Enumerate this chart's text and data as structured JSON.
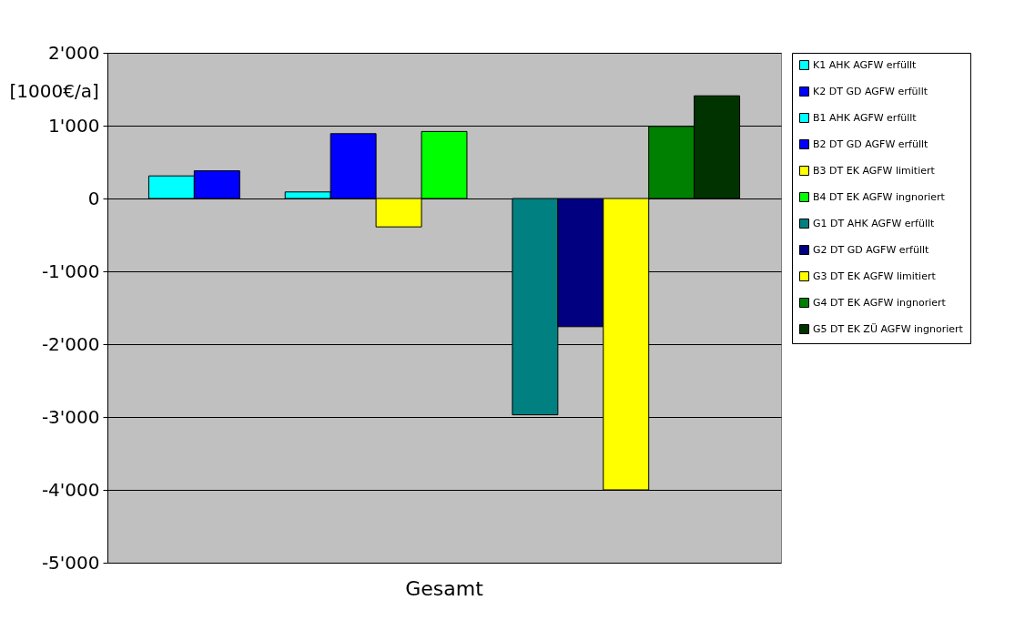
{
  "chart_data": {
    "type": "bar",
    "categories": [
      "Gesamt"
    ],
    "ylabel": "[1000€/a]",
    "ylim": [
      -5000,
      2000
    ],
    "yticks": [
      {
        "value": 2000,
        "label": "2'000"
      },
      {
        "value": 1000,
        "label": "1'000"
      },
      0,
      {
        "value": -1000,
        "label": "-1'000"
      },
      {
        "value": -2000,
        "label": "-2'000"
      },
      {
        "value": -3000,
        "label": "-3'000"
      },
      {
        "value": -4000,
        "label": "-4'000"
      },
      {
        "value": -5000,
        "label": "-5'000"
      }
    ],
    "grid": "y",
    "legend": "right",
    "series": [
      {
        "name": "K1 AHK AGFW erfüllt",
        "color": "#00ffff",
        "values": [
          310
        ]
      },
      {
        "name": "K2 DT GD AGFW erfüllt",
        "color": "#0000ff",
        "values": [
          380
        ]
      },
      {
        "values": [
          null
        ]
      },
      {
        "name": "B1 AHK AGFW erfüllt",
        "color": "#00ffff",
        "values": [
          90
        ]
      },
      {
        "name": "B2 DT GD AGFW erfüllt",
        "color": "#0000ff",
        "values": [
          890
        ]
      },
      {
        "name": "B3 DT EK AGFW limitiert",
        "color": "#ffff00",
        "values": [
          -390
        ]
      },
      {
        "name": "B4 DT EK AGFW ingnoriert",
        "color": "#00ff00",
        "values": [
          920
        ]
      },
      {
        "values": [
          null
        ]
      },
      {
        "name": "G1 DT AHK AGFW erfüllt",
        "color": "#008080",
        "values": [
          -2970
        ]
      },
      {
        "name": "G2 DT GD AGFW erfüllt",
        "color": "#000080",
        "values": [
          -1760
        ]
      },
      {
        "name": "G3 DT EK AGFW limitiert",
        "color": "#ffff00",
        "values": [
          -4000
        ]
      },
      {
        "name": "G4 DT EK AGFW ingnoriert",
        "color": "#008000",
        "values": [
          990
        ]
      },
      {
        "name": "G5 DT EK ZÜ AGFW ingnoriert",
        "color": "#003300",
        "values": [
          1410
        ]
      }
    ]
  }
}
